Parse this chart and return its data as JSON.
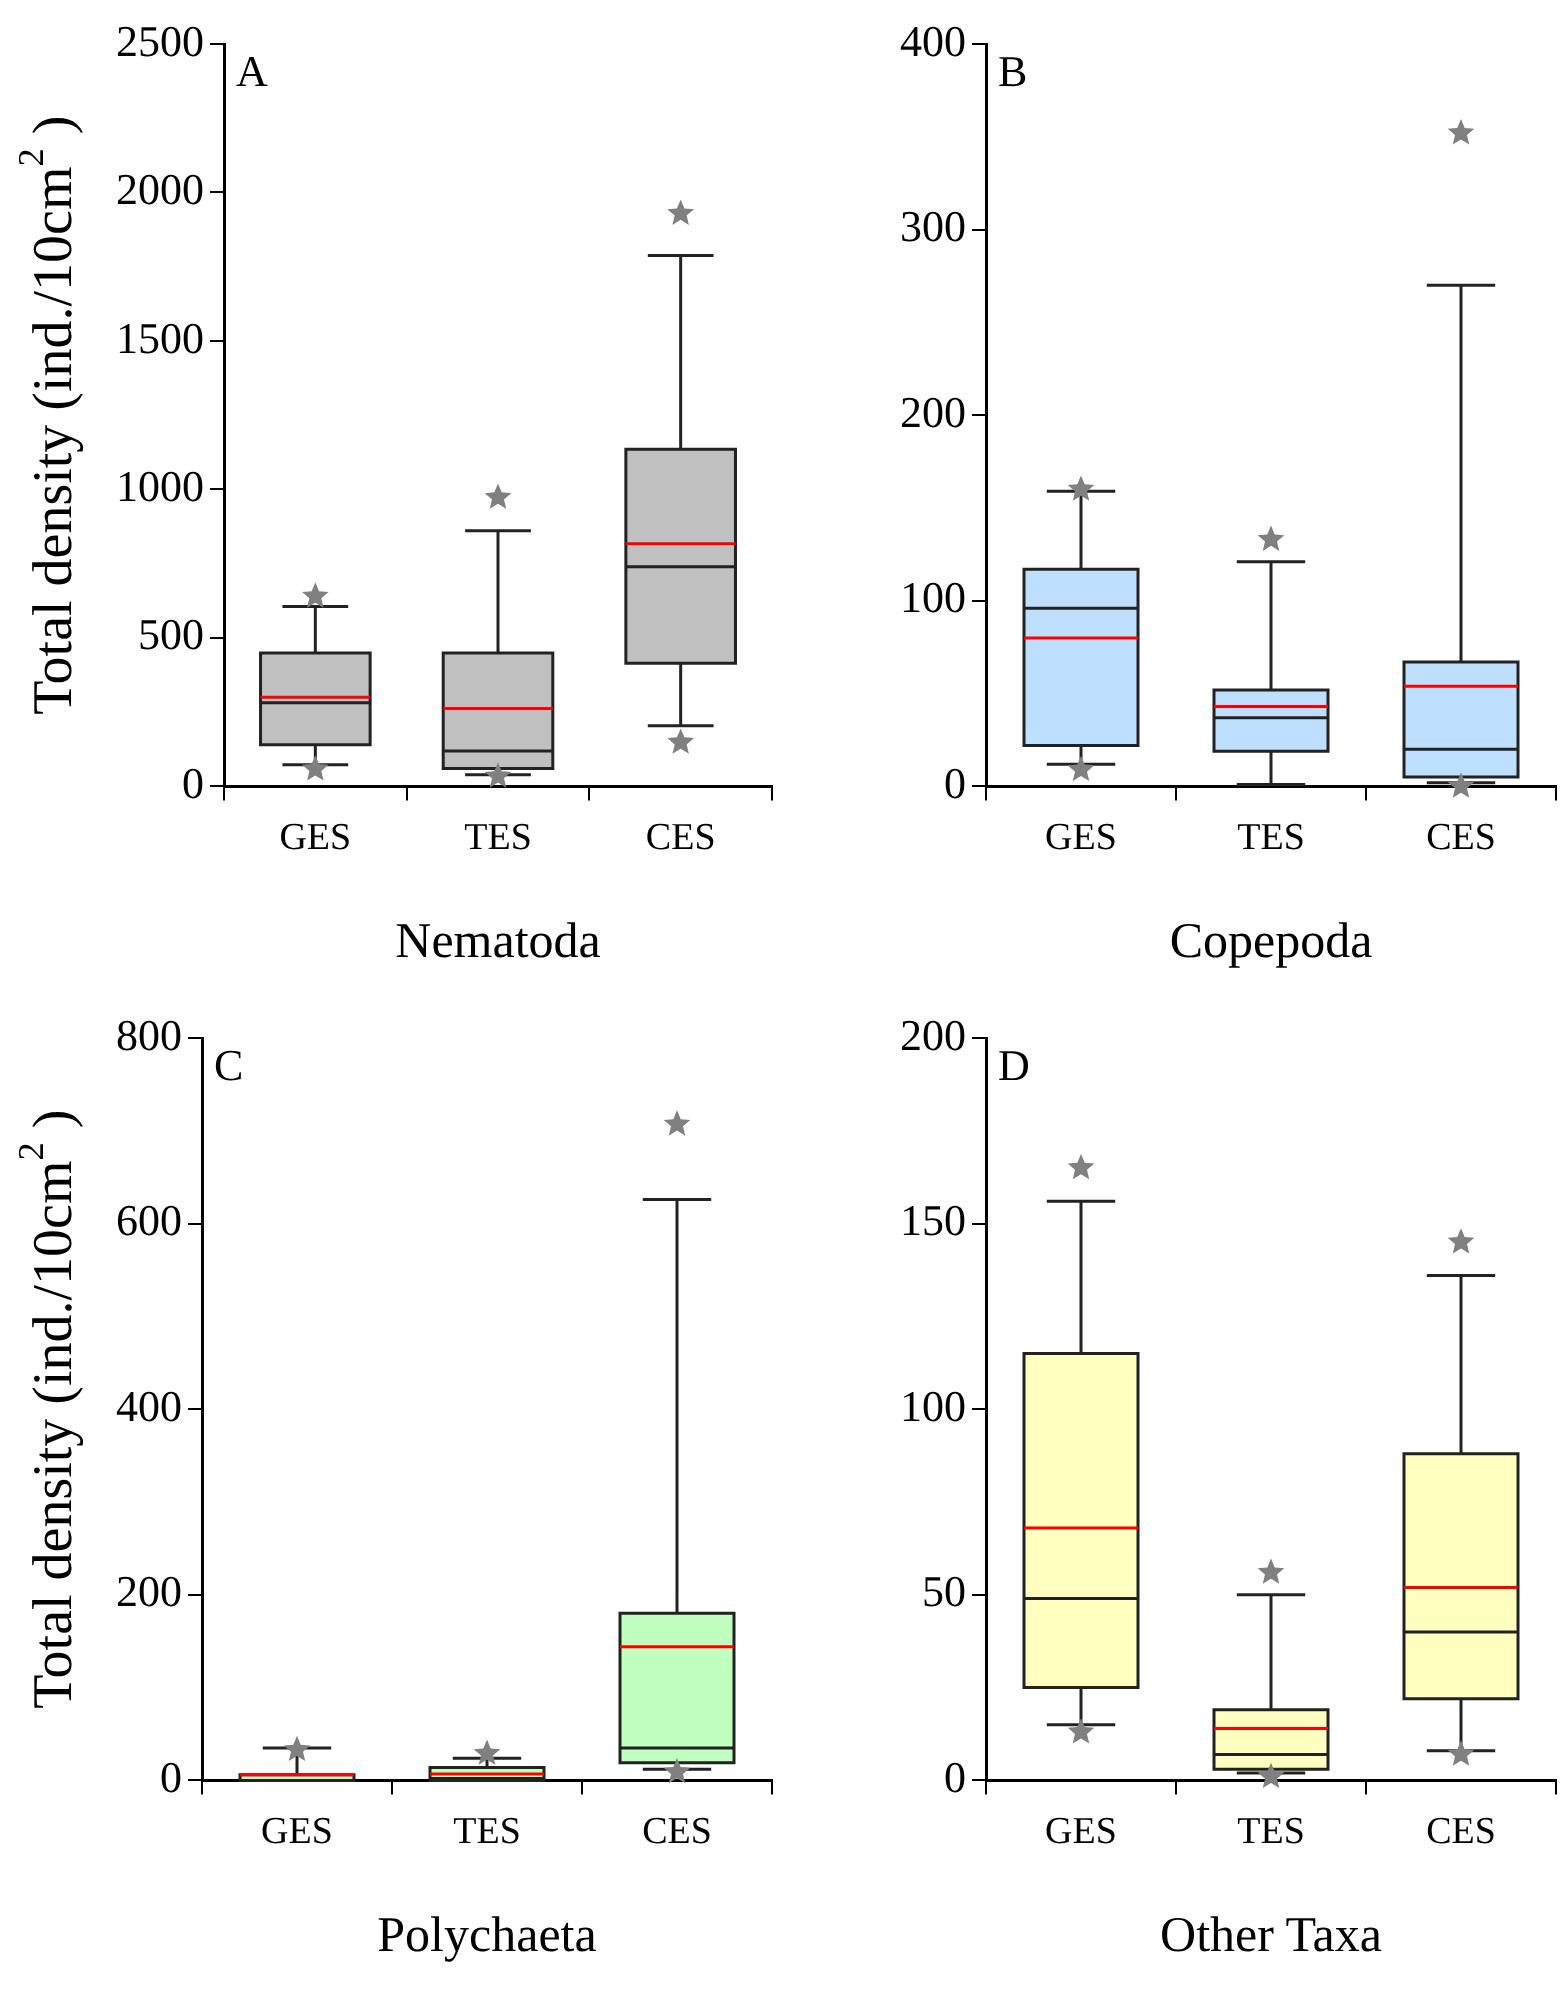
{
  "chart_data": [
    {
      "type": "box",
      "annotations": [
        "A"
      ],
      "xlabel": "Nematoda",
      "ylabel": "Total density (ind./10cm$^{2}$ )",
      "categories": [
        "GES",
        "TES",
        "CES"
      ],
      "color": "#c0c0c0",
      "ylim": [
        0,
        2500
      ],
      "yticks": [
        0,
        500,
        1000,
        1500,
        2000,
        2500
      ],
      "grid": false,
      "boxes": [
        {
          "low": 73,
          "q1": 140,
          "median": 282,
          "q3": 449,
          "high": 606,
          "mean": 300,
          "outliers": [
            640,
            58
          ]
        },
        {
          "low": 39,
          "q1": 60,
          "median": 119,
          "q3": 449,
          "high": 861,
          "mean": 262,
          "outliers": [
            973,
            34
          ]
        },
        {
          "low": 204,
          "q1": 415,
          "median": 740,
          "q3": 1135,
          "high": 1788,
          "mean": 817,
          "outliers": [
            1929,
            148
          ]
        }
      ]
    },
    {
      "type": "box",
      "annotations": [
        "B"
      ],
      "xlabel": "Copepoda",
      "categories": [
        "GES",
        "TES",
        "CES"
      ],
      "color": "#bfdfff",
      "ylim": [
        0,
        400
      ],
      "yticks": [
        0,
        100,
        200,
        300,
        400
      ],
      "grid": false,
      "boxes": [
        {
          "low": 12,
          "q1": 22,
          "median": 96,
          "q3": 117,
          "high": 159,
          "mean": 80,
          "outliers": [
            160,
            9
          ]
        },
        {
          "low": 1,
          "q1": 19,
          "median": 37,
          "q3": 52,
          "high": 121,
          "mean": 43,
          "outliers": [
            133
          ]
        },
        {
          "low": 2,
          "q1": 5,
          "median": 20,
          "q3": 67,
          "high": 270,
          "mean": 54,
          "outliers": [
            352,
            0
          ]
        }
      ]
    },
    {
      "type": "box",
      "annotations": [
        "C"
      ],
      "xlabel": "Polychaeta",
      "ylabel": "Total density (ind./10cm$^{2}$ )",
      "categories": [
        "GES",
        "TES",
        "CES"
      ],
      "color": "#c0ffc0",
      "ylim": [
        0,
        800
      ],
      "yticks": [
        0,
        200,
        400,
        600,
        800
      ],
      "grid": false,
      "boxes": [
        {
          "low": 0,
          "q1": 0,
          "median": 0,
          "q3": 6,
          "high": 35,
          "mean": 6,
          "outliers": [
            33
          ]
        },
        {
          "low": 0,
          "q1": 0,
          "median": 2,
          "q3": 14,
          "high": 24,
          "mean": 7,
          "outliers": [
            29
          ]
        },
        {
          "low": 12,
          "q1": 19,
          "median": 35,
          "q3": 180,
          "high": 626,
          "mean": 144,
          "outliers": [
            707,
            9
          ]
        }
      ]
    },
    {
      "type": "box",
      "annotations": [
        "D"
      ],
      "xlabel": "Other Taxa",
      "categories": [
        "GES",
        "TES",
        "CES"
      ],
      "color": "#ffffc0",
      "ylim": [
        0,
        200
      ],
      "yticks": [
        0,
        50,
        100,
        150,
        200
      ],
      "grid": false,
      "boxes": [
        {
          "low": 15,
          "q1": 25,
          "median": 49,
          "q3": 115,
          "high": 156,
          "mean": 68,
          "outliers": [
            165,
            13
          ]
        },
        {
          "low": 2,
          "q1": 3,
          "median": 7,
          "q3": 19,
          "high": 50,
          "mean": 14,
          "outliers": [
            56,
            1
          ]
        },
        {
          "low": 8,
          "q1": 22,
          "median": 40,
          "q3": 88,
          "high": 136,
          "mean": 52,
          "outliers": [
            145,
            7
          ]
        }
      ]
    }
  ]
}
